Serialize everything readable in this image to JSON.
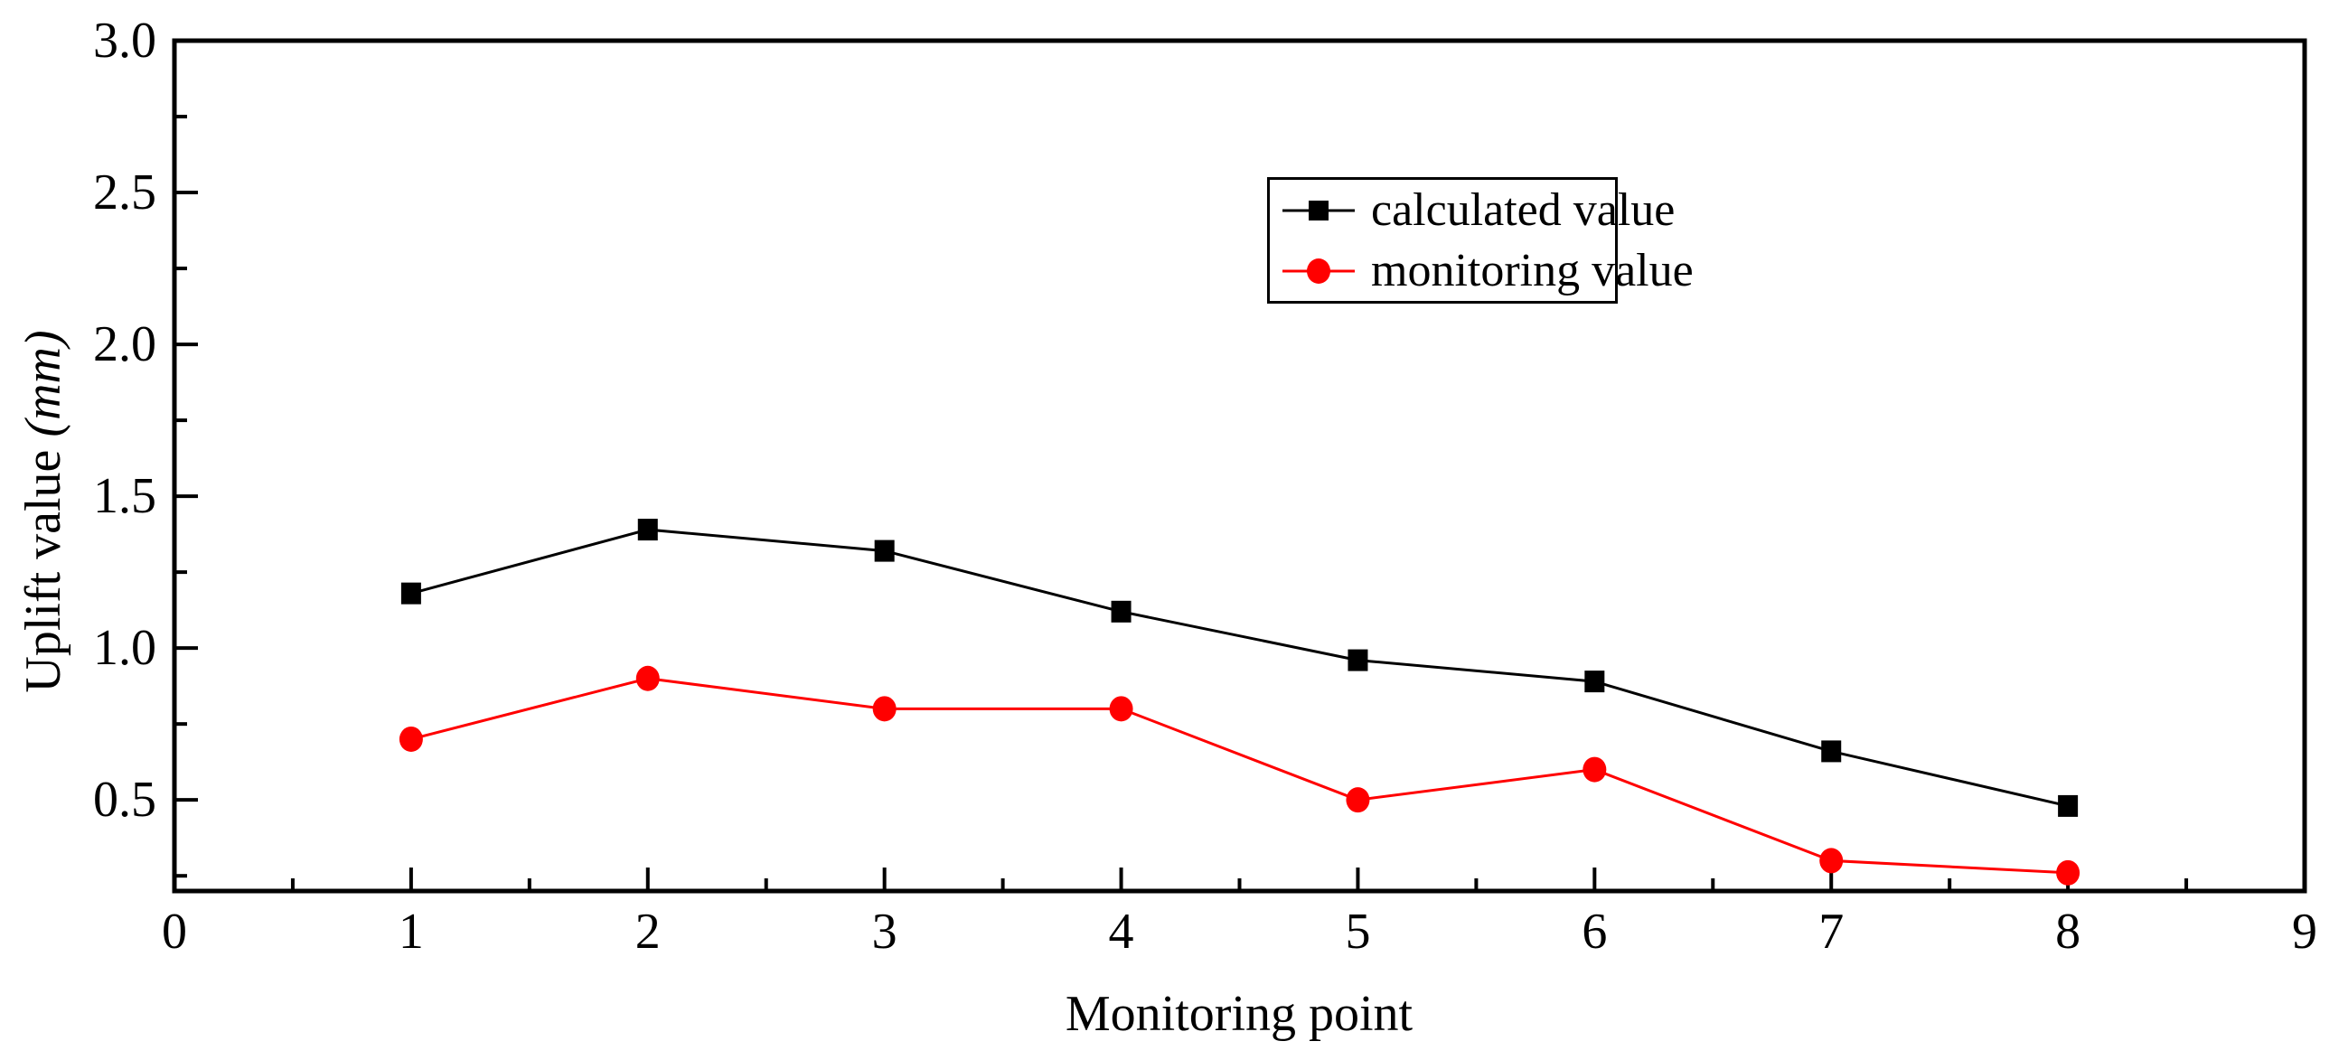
{
  "figure": {
    "background": "#ffffff",
    "axis_color": "#000000"
  },
  "labels": {
    "ylabel_main": "Uplift value ",
    "ylabel_unit": "(mm)"
  },
  "chart_data": {
    "type": "line",
    "title": "",
    "xlabel": "Monitoring point",
    "ylabel": "Uplift value (mm)",
    "x": [
      1,
      2,
      3,
      4,
      5,
      6,
      7,
      8
    ],
    "series": [
      {
        "name": "calculated value",
        "color": "#000000",
        "marker": "square",
        "values": [
          1.18,
          1.39,
          1.32,
          1.12,
          0.96,
          0.89,
          0.66,
          0.48
        ]
      },
      {
        "name": "monitoring value",
        "color": "#ff0000",
        "marker": "circle",
        "values": [
          0.7,
          0.9,
          0.8,
          0.8,
          0.5,
          0.6,
          0.3,
          0.26
        ]
      }
    ],
    "xlim": [
      0,
      9
    ],
    "ylim": [
      0.2,
      3.0
    ],
    "x_tick_labels": [
      "0",
      "1",
      "2",
      "3",
      "4",
      "5",
      "6",
      "7",
      "8",
      "9"
    ],
    "x_minor_step": 0.5,
    "y_tick_labels": [
      "0.5",
      "1.0",
      "1.5",
      "2.0",
      "2.5",
      "3.0"
    ],
    "y_minor_step": 0.25,
    "grid": false,
    "frame": true,
    "legend_position": "upper-center-right"
  }
}
